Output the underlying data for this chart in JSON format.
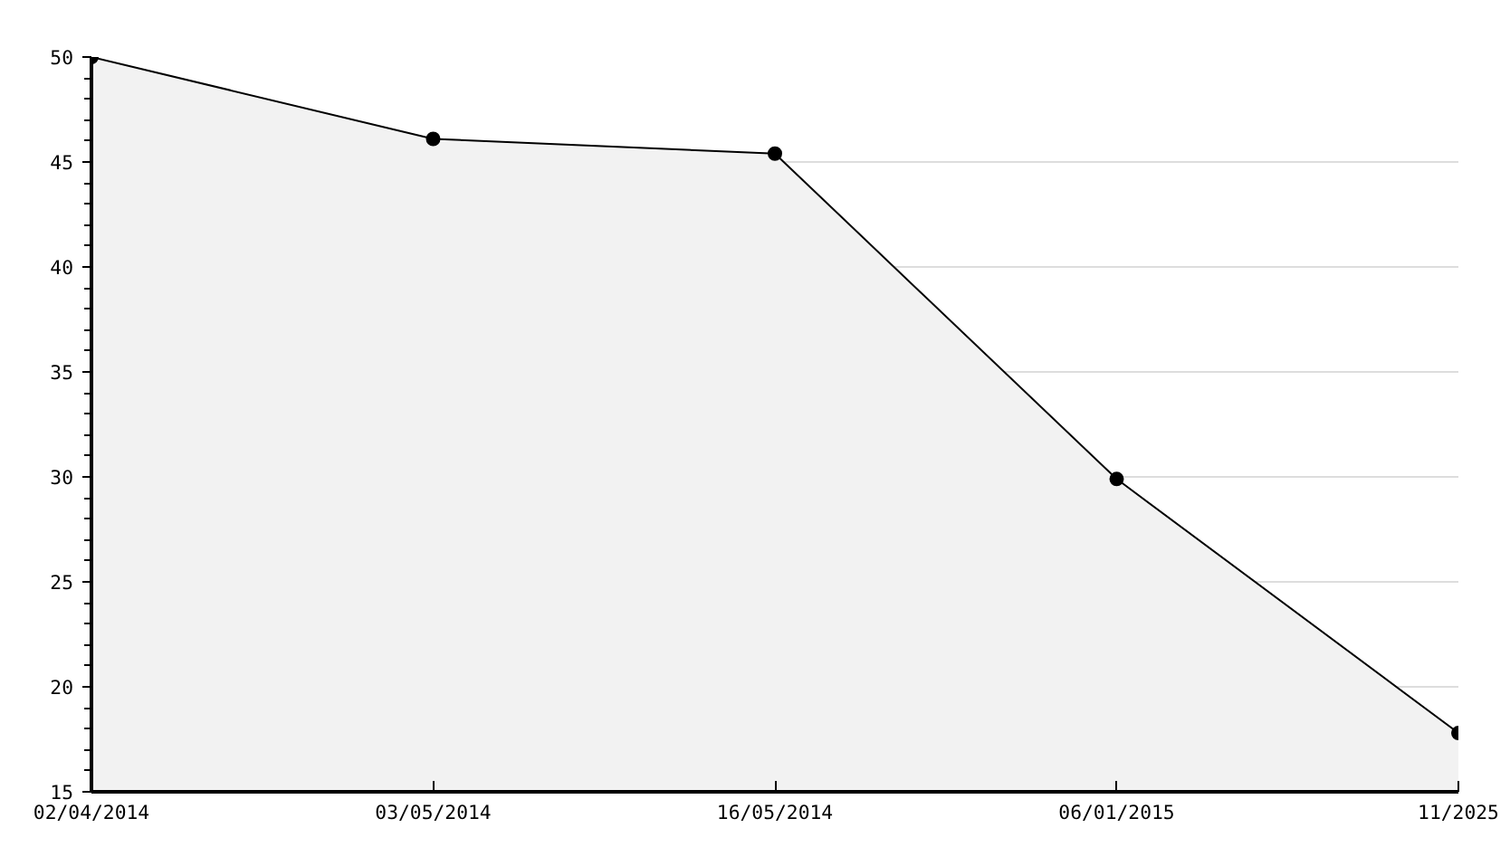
{
  "chart_data": {
    "type": "area",
    "categories": [
      "02/04/2014",
      "03/05/2014",
      "16/05/2014",
      "06/01/2015",
      "11/2025"
    ],
    "series": [
      {
        "color": "#000000",
        "values": [
          50,
          46.1,
          45.4,
          29.9,
          17.8
        ]
      }
    ],
    "ylim": [
      15,
      50
    ],
    "yticks": [
      15,
      20,
      25,
      30,
      35,
      40,
      45,
      50
    ],
    "grid": "y",
    "marker": "circle",
    "line_style": "solid"
  }
}
